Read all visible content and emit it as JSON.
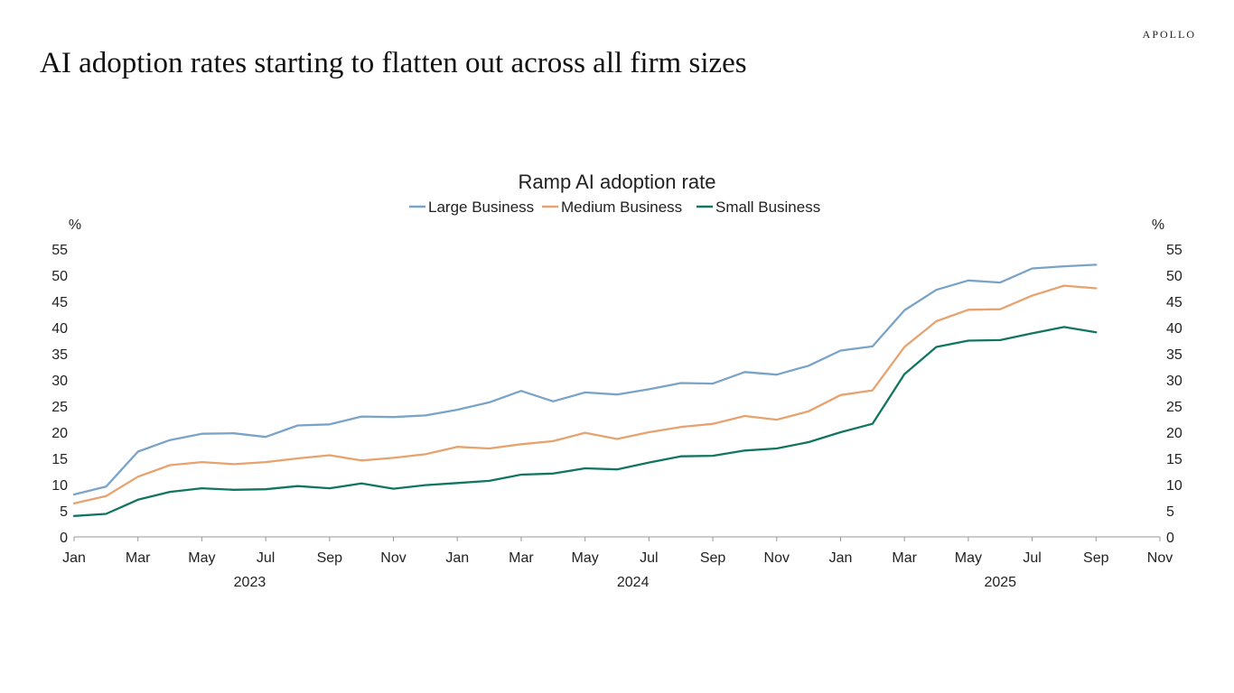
{
  "header": {
    "brand": "APOLLO",
    "headline": "AI adoption rates starting to flatten out across all firm sizes"
  },
  "colors": {
    "large": "#7aa3c8",
    "medium": "#e8a26e",
    "small": "#127561"
  },
  "chart_data": {
    "type": "line",
    "title": "Ramp AI adoption rate",
    "ylabel_left": "%",
    "ylabel_right": "%",
    "ylim": [
      0,
      55
    ],
    "yticks": [
      0,
      5,
      10,
      15,
      20,
      25,
      30,
      35,
      40,
      45,
      50,
      55
    ],
    "x_axis": {
      "start": "2023-01",
      "end": "2025-11",
      "tick_labels": [
        "Jan",
        "Mar",
        "May",
        "Jul",
        "Sep",
        "Nov",
        "Jan",
        "Mar",
        "May",
        "Jul",
        "Sep",
        "Nov",
        "Jan",
        "Mar",
        "May",
        "Jul",
        "Sep",
        "Nov"
      ],
      "year_labels": [
        "2023",
        "2024",
        "2025"
      ]
    },
    "legend_position": "top-center",
    "grid": false,
    "x": [
      "2023-01",
      "2023-02",
      "2023-03",
      "2023-04",
      "2023-05",
      "2023-06",
      "2023-07",
      "2023-08",
      "2023-09",
      "2023-10",
      "2023-11",
      "2023-12",
      "2024-01",
      "2024-02",
      "2024-03",
      "2024-04",
      "2024-05",
      "2024-06",
      "2024-07",
      "2024-08",
      "2024-09",
      "2024-10",
      "2024-11",
      "2024-12",
      "2025-01",
      "2025-02",
      "2025-03",
      "2025-04",
      "2025-05",
      "2025-06",
      "2025-07",
      "2025-08",
      "2025-09"
    ],
    "series": [
      {
        "name": "Large Business",
        "color_key": "large",
        "values": [
          8.1,
          9.6,
          16.3,
          18.5,
          19.7,
          19.8,
          19.1,
          21.3,
          21.5,
          23.0,
          22.9,
          23.2,
          24.3,
          25.7,
          27.9,
          25.9,
          27.6,
          27.2,
          28.2,
          29.4,
          29.3,
          31.5,
          31.0,
          32.7,
          35.6,
          36.4,
          43.3,
          47.2,
          49.0,
          48.6,
          51.3,
          51.7,
          52.0
        ]
      },
      {
        "name": "Medium Business",
        "color_key": "medium",
        "values": [
          6.4,
          7.8,
          11.5,
          13.7,
          14.3,
          13.9,
          14.3,
          15.0,
          15.6,
          14.6,
          15.1,
          15.8,
          17.2,
          16.9,
          17.7,
          18.3,
          19.9,
          18.7,
          20.0,
          21.0,
          21.6,
          23.1,
          22.4,
          24.0,
          27.1,
          28.0,
          36.3,
          41.2,
          43.4,
          43.5,
          46.1,
          48.0,
          47.5
        ]
      },
      {
        "name": "Small Business",
        "color_key": "small",
        "values": [
          4.0,
          4.4,
          7.1,
          8.6,
          9.3,
          9.0,
          9.1,
          9.7,
          9.3,
          10.2,
          9.2,
          9.9,
          10.3,
          10.7,
          11.9,
          12.1,
          13.1,
          12.9,
          14.2,
          15.4,
          15.5,
          16.5,
          16.9,
          18.1,
          20.0,
          21.6,
          31.1,
          36.3,
          37.5,
          37.6,
          38.9,
          40.1,
          39.1
        ]
      }
    ]
  }
}
